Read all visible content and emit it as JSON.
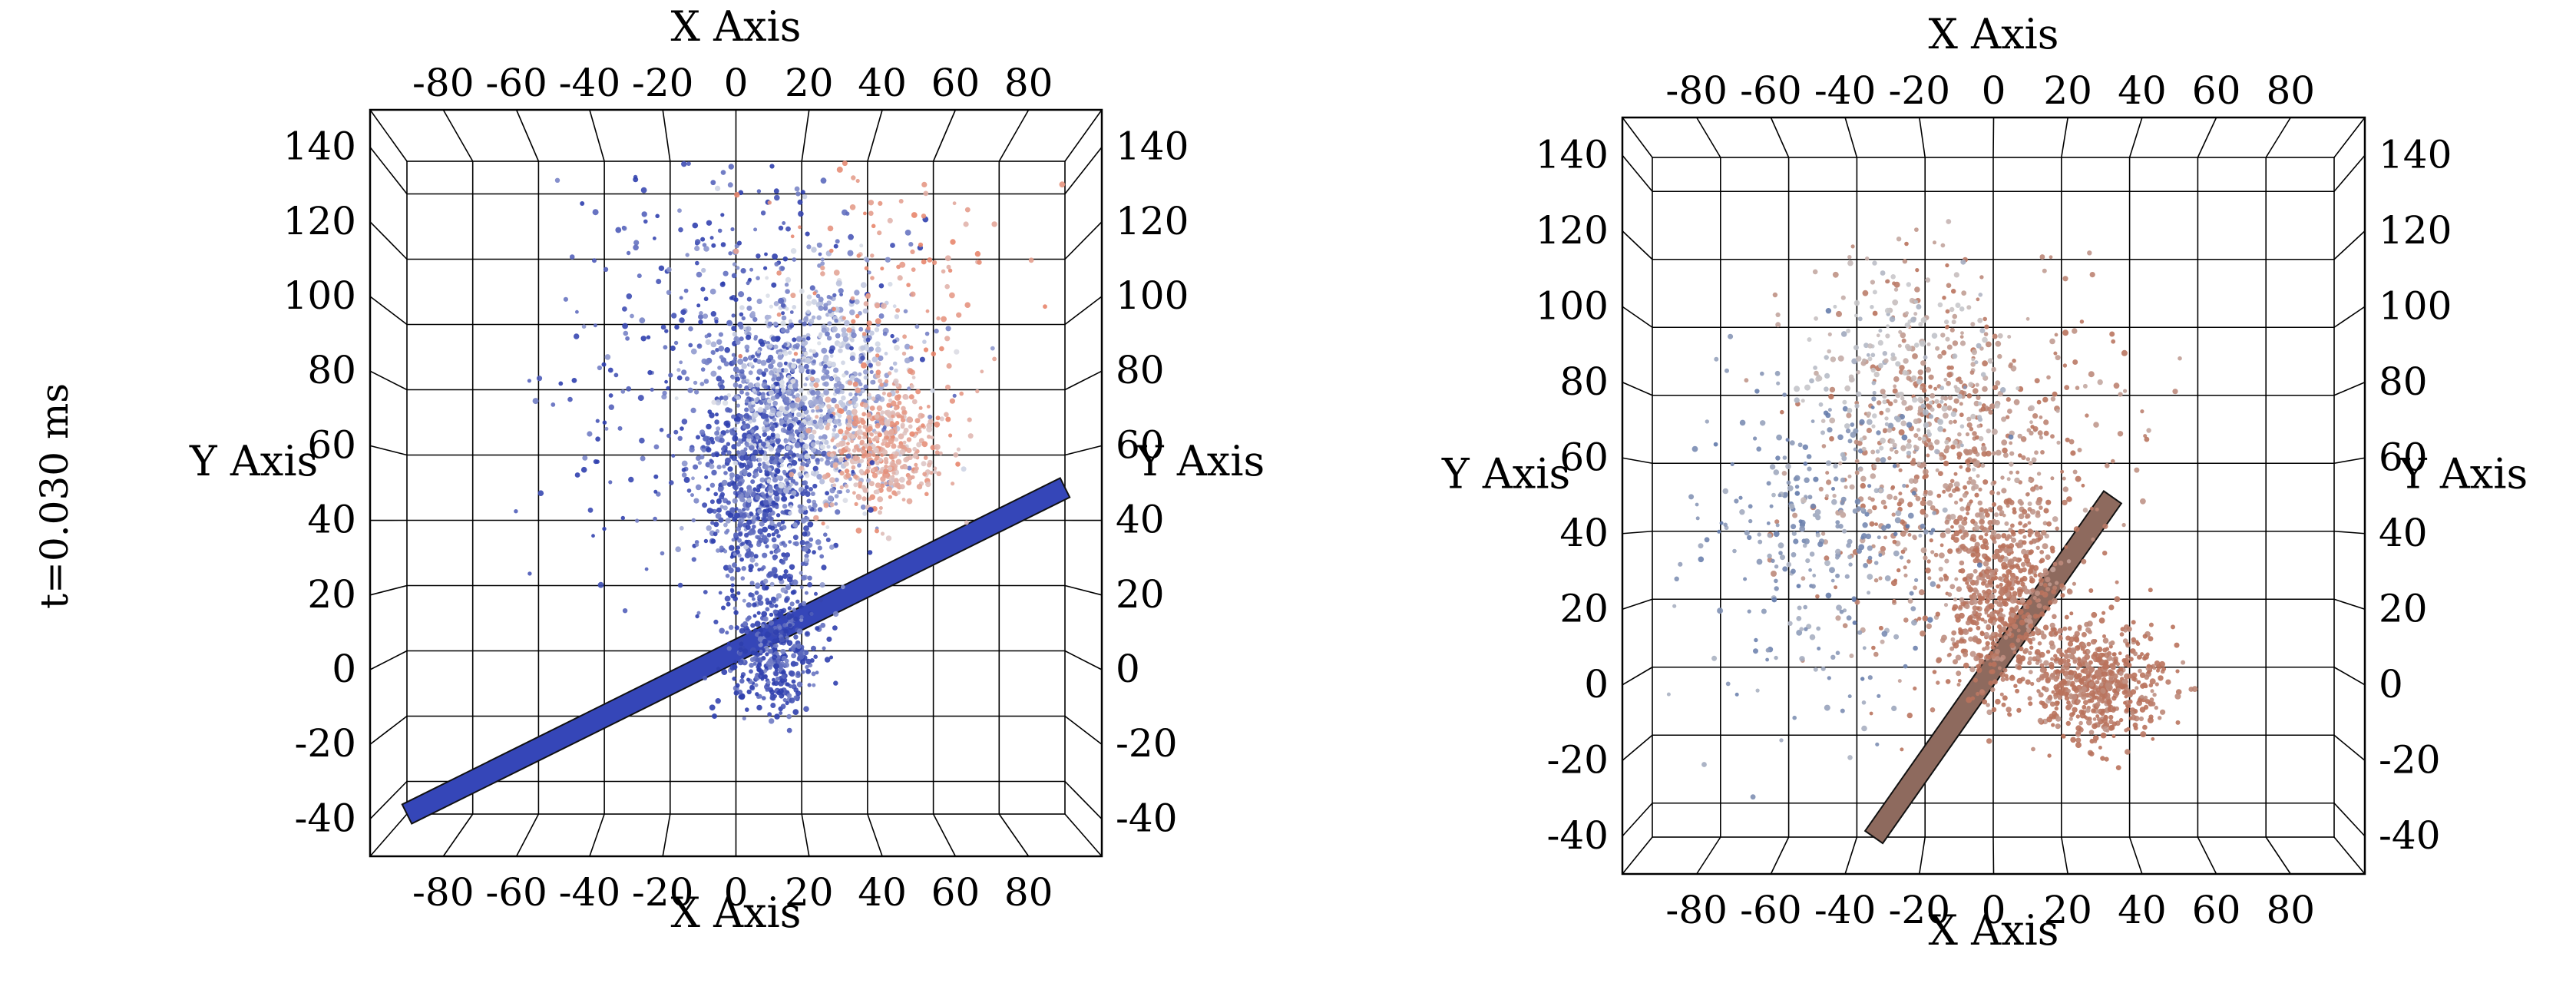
{
  "time_label": "t=0.030 ms",
  "chart_data": [
    {
      "type": "scatter",
      "projection": "3d",
      "xlabel": "X Axis",
      "ylabel": "Y Axis",
      "x_ticks": [
        "-80",
        "-60",
        "-40",
        "-20",
        "0",
        "20",
        "40",
        "60",
        "80"
      ],
      "y_ticks": [
        "140",
        "120",
        "100",
        "80",
        "60",
        "40",
        "20",
        "0",
        "-20",
        "-40"
      ],
      "xlim": [
        -100,
        100
      ],
      "ylim": [
        -50,
        150
      ],
      "grid": true,
      "colors": {
        "low": "#2f3fae",
        "mid": "#dadfe8",
        "high": "#e8856b"
      },
      "plate": {
        "from": [
          -100,
          -50
        ],
        "to": [
          100,
          50
        ],
        "color": "#3546b8"
      },
      "clusters": [
        {
          "cx": 8,
          "cy": 55,
          "sx": 10,
          "sy": 22,
          "n": 900,
          "c": 0.12
        },
        {
          "cx": 25,
          "cy": 80,
          "sx": 14,
          "sy": 18,
          "n": 700,
          "c": 0.35
        },
        {
          "cx": 45,
          "cy": 62,
          "sx": 9,
          "sy": 10,
          "n": 420,
          "c": 0.8
        },
        {
          "cx": 12,
          "cy": 0,
          "sx": 7,
          "sy": 10,
          "n": 380,
          "c": 0.05
        },
        {
          "cx": 0,
          "cy": 100,
          "sx": 25,
          "sy": 28,
          "n": 300,
          "c": 0.1
        },
        {
          "cx": 50,
          "cy": 110,
          "sx": 20,
          "sy": 20,
          "n": 120,
          "c": 0.9
        },
        {
          "cx": -40,
          "cy": 60,
          "sx": 12,
          "sy": 20,
          "n": 40,
          "c": 0.05
        }
      ]
    },
    {
      "type": "scatter",
      "projection": "3d",
      "xlabel": "X Axis",
      "ylabel": "Y Axis",
      "x_ticks": [
        "-80",
        "-60",
        "-40",
        "-20",
        "0",
        "20",
        "40",
        "60",
        "80"
      ],
      "y_ticks": [
        "140",
        "120",
        "100",
        "80",
        "60",
        "40",
        "20",
        "0",
        "-20",
        "-40"
      ],
      "xlim": [
        -100,
        100
      ],
      "ylim": [
        -50,
        150
      ],
      "grid": true,
      "colors": {
        "low": "#5b74a8",
        "mid": "#c9c9cc",
        "high": "#b9725c"
      },
      "plate": {
        "from": [
          -35,
          -50
        ],
        "to": [
          35,
          50
        ],
        "color": "#8e6a5e"
      },
      "clusters": [
        {
          "cx": -10,
          "cy": 60,
          "sx": 22,
          "sy": 28,
          "n": 700,
          "c": 0.85
        },
        {
          "cx": 2,
          "cy": 20,
          "sx": 9,
          "sy": 14,
          "n": 600,
          "c": 0.95
        },
        {
          "cx": 30,
          "cy": -5,
          "sx": 10,
          "sy": 8,
          "n": 600,
          "c": 0.98
        },
        {
          "cx": -50,
          "cy": 40,
          "sx": 18,
          "sy": 25,
          "n": 300,
          "c": 0.2
        },
        {
          "cx": -25,
          "cy": 85,
          "sx": 15,
          "sy": 15,
          "n": 200,
          "c": 0.5
        }
      ]
    }
  ]
}
